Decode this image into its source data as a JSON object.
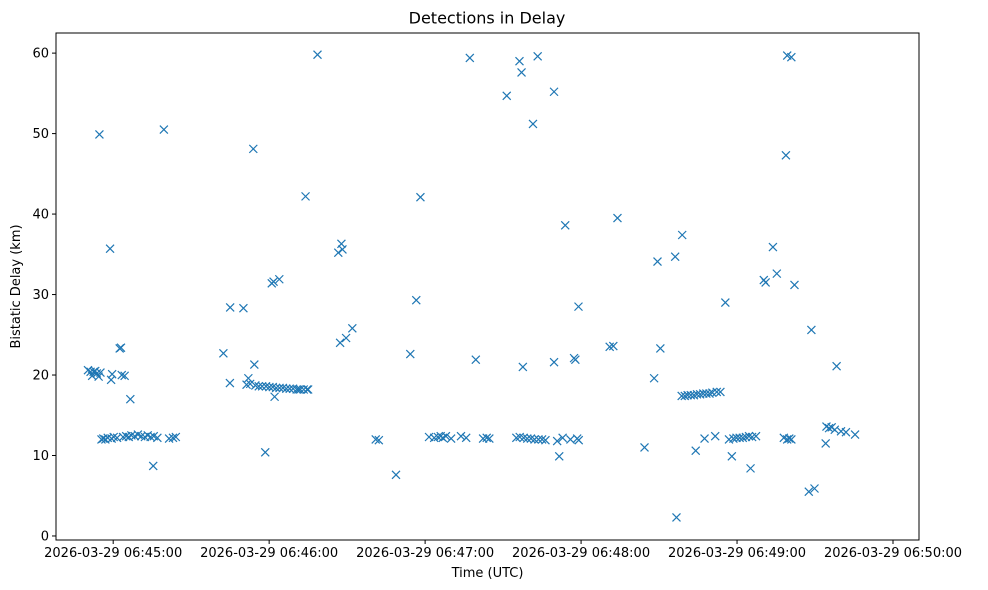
{
  "chart_data": {
    "type": "scatter",
    "title": "Detections in Delay",
    "xlabel": "Time (UTC)",
    "ylabel": "Bistatic Delay (km)",
    "marker": "x",
    "color": "#1f77b4",
    "x_unit": "seconds after 2026-03-29 06:45:00 UTC",
    "xlim": [
      -22.0,
      310.0
    ],
    "ylim": [
      -0.5,
      62.5
    ],
    "x_ticks": [
      {
        "value": 0,
        "label": "2026-03-29 06:45:00"
      },
      {
        "value": 60,
        "label": "2026-03-29 06:46:00"
      },
      {
        "value": 120,
        "label": "2026-03-29 06:47:00"
      },
      {
        "value": 180,
        "label": "2026-03-29 06:48:00"
      },
      {
        "value": 240,
        "label": "2026-03-29 06:49:00"
      },
      {
        "value": 300,
        "label": "2026-03-29 06:50:00"
      }
    ],
    "y_ticks": [
      {
        "value": 0,
        "label": "0"
      },
      {
        "value": 10,
        "label": "10"
      },
      {
        "value": 20,
        "label": "20"
      },
      {
        "value": 30,
        "label": "30"
      },
      {
        "value": 40,
        "label": "40"
      },
      {
        "value": 50,
        "label": "50"
      },
      {
        "value": 60,
        "label": "60"
      }
    ],
    "points": [
      [
        -9.7,
        20.6
      ],
      [
        -8.7,
        20.4
      ],
      [
        -8.1,
        19.9
      ],
      [
        -7.5,
        20.4
      ],
      [
        -6.9,
        20.5
      ],
      [
        -6.3,
        20.2
      ],
      [
        -5.6,
        19.8
      ],
      [
        -4.9,
        20.3
      ],
      [
        -5.3,
        49.9
      ],
      [
        -4.5,
        12.0
      ],
      [
        -3.8,
        12.1
      ],
      [
        -3.0,
        12.0
      ],
      [
        -2.1,
        12.2
      ],
      [
        -1.2,
        35.7
      ],
      [
        -0.6,
        12.1
      ],
      [
        0.2,
        12.3
      ],
      [
        -0.8,
        19.4
      ],
      [
        -0.4,
        20.1
      ],
      [
        1.5,
        12.2
      ],
      [
        2.5,
        23.3
      ],
      [
        3.0,
        23.4
      ],
      [
        3.3,
        20.0
      ],
      [
        3.8,
        12.3
      ],
      [
        4.4,
        19.9
      ],
      [
        5.0,
        12.4
      ],
      [
        6.0,
        12.3
      ],
      [
        6.6,
        17.0
      ],
      [
        7.0,
        12.5
      ],
      [
        8.3,
        12.4
      ],
      [
        9.5,
        12.6
      ],
      [
        10.8,
        12.4
      ],
      [
        12.2,
        12.3
      ],
      [
        13.3,
        12.5
      ],
      [
        14.4,
        12.3
      ],
      [
        15.4,
        8.7
      ],
      [
        15.6,
        12.4
      ],
      [
        17.0,
        12.2
      ],
      [
        21.5,
        12.1
      ],
      [
        23.0,
        12.2
      ],
      [
        19.5,
        50.5
      ],
      [
        24.1,
        12.3
      ],
      [
        42.4,
        22.7
      ],
      [
        45.0,
        28.4
      ],
      [
        44.9,
        19.0
      ],
      [
        50.1,
        28.3
      ],
      [
        51.3,
        18.8
      ],
      [
        52.0,
        19.6
      ],
      [
        52.7,
        18.9
      ],
      [
        54.3,
        21.3
      ],
      [
        53.9,
        48.1
      ],
      [
        54.7,
        18.7
      ],
      [
        56.0,
        18.6
      ],
      [
        57.3,
        18.6
      ],
      [
        58.5,
        10.4
      ],
      [
        58.8,
        18.6
      ],
      [
        60.1,
        18.5
      ],
      [
        61.4,
        18.5
      ],
      [
        61.0,
        31.4
      ],
      [
        61.7,
        31.6
      ],
      [
        62.1,
        17.3
      ],
      [
        62.7,
        18.4
      ],
      [
        63.9,
        31.9
      ],
      [
        64.0,
        18.4
      ],
      [
        65.3,
        18.4
      ],
      [
        66.6,
        18.3
      ],
      [
        67.9,
        18.3
      ],
      [
        69.2,
        18.3
      ],
      [
        70.6,
        18.2
      ],
      [
        71.3,
        18.2
      ],
      [
        72.0,
        18.2
      ],
      [
        73.3,
        18.2
      ],
      [
        74.0,
        42.2
      ],
      [
        74.6,
        18.2
      ],
      [
        75.0,
        18.2
      ],
      [
        78.6,
        59.8
      ],
      [
        86.6,
        35.2
      ],
      [
        87.3,
        24.0
      ],
      [
        87.8,
        36.3
      ],
      [
        88.2,
        35.6
      ],
      [
        89.6,
        24.6
      ],
      [
        92.0,
        25.8
      ],
      [
        101.0,
        12.0
      ],
      [
        102.2,
        11.9
      ],
      [
        108.8,
        7.6
      ],
      [
        114.3,
        22.6
      ],
      [
        116.6,
        29.3
      ],
      [
        118.2,
        42.1
      ],
      [
        121.5,
        12.3
      ],
      [
        123.5,
        12.2
      ],
      [
        124.9,
        12.3
      ],
      [
        126.0,
        12.4
      ],
      [
        126.8,
        12.2
      ],
      [
        128.0,
        12.4
      ],
      [
        130.0,
        12.1
      ],
      [
        133.8,
        12.4
      ],
      [
        135.8,
        12.2
      ],
      [
        137.2,
        59.4
      ],
      [
        139.5,
        21.9
      ],
      [
        142.3,
        12.1
      ],
      [
        143.7,
        12.2
      ],
      [
        144.7,
        12.1
      ],
      [
        151.4,
        54.7
      ],
      [
        155.1,
        12.2
      ],
      [
        156.3,
        59.0
      ],
      [
        156.4,
        12.3
      ],
      [
        157.1,
        57.6
      ],
      [
        157.6,
        21.0
      ],
      [
        157.9,
        12.2
      ],
      [
        159.3,
        12.1
      ],
      [
        160.7,
        12.1
      ],
      [
        161.5,
        51.2
      ],
      [
        162.1,
        12.0
      ],
      [
        163.3,
        59.6
      ],
      [
        163.6,
        12.0
      ],
      [
        165.0,
        12.0
      ],
      [
        166.3,
        11.9
      ],
      [
        169.6,
        21.6
      ],
      [
        169.6,
        55.2
      ],
      [
        170.8,
        11.8
      ],
      [
        171.6,
        9.9
      ],
      [
        172.9,
        12.2
      ],
      [
        173.9,
        38.6
      ],
      [
        175.9,
        12.0
      ],
      [
        177.3,
        22.1
      ],
      [
        177.8,
        21.9
      ],
      [
        178.5,
        12.1
      ],
      [
        179.1,
        11.9
      ],
      [
        179.0,
        28.5
      ],
      [
        191.0,
        23.5
      ],
      [
        192.4,
        23.6
      ],
      [
        194.0,
        39.5
      ],
      [
        204.4,
        11.0
      ],
      [
        208.1,
        19.6
      ],
      [
        209.4,
        34.1
      ],
      [
        210.5,
        23.3
      ],
      [
        216.2,
        34.7
      ],
      [
        216.7,
        2.3
      ],
      [
        218.9,
        37.4
      ],
      [
        218.7,
        17.4
      ],
      [
        219.9,
        17.4
      ],
      [
        221.0,
        17.5
      ],
      [
        222.2,
        17.5
      ],
      [
        223.4,
        17.5
      ],
      [
        224.1,
        10.6
      ],
      [
        224.6,
        17.6
      ],
      [
        225.8,
        17.6
      ],
      [
        227.0,
        17.7
      ],
      [
        227.5,
        12.1
      ],
      [
        228.2,
        17.7
      ],
      [
        229.4,
        17.7
      ],
      [
        230.5,
        17.8
      ],
      [
        231.6,
        12.4
      ],
      [
        232.2,
        17.9
      ],
      [
        233.6,
        17.9
      ],
      [
        235.5,
        29.0
      ],
      [
        236.9,
        12.0
      ],
      [
        238.0,
        9.9
      ],
      [
        238.6,
        12.1
      ],
      [
        239.8,
        12.2
      ],
      [
        241.0,
        12.2
      ],
      [
        242.2,
        12.2
      ],
      [
        243.4,
        12.3
      ],
      [
        244.6,
        12.4
      ],
      [
        245.2,
        8.4
      ],
      [
        245.8,
        12.3
      ],
      [
        247.3,
        12.4
      ],
      [
        250.3,
        31.8
      ],
      [
        251.0,
        31.5
      ],
      [
        253.8,
        35.9
      ],
      [
        255.3,
        32.6
      ],
      [
        258.0,
        12.2
      ],
      [
        258.8,
        47.3
      ],
      [
        259.3,
        12.0
      ],
      [
        259.3,
        59.7
      ],
      [
        260.1,
        12.1
      ],
      [
        260.9,
        59.5
      ],
      [
        260.9,
        12.0
      ],
      [
        262.1,
        31.2
      ],
      [
        267.6,
        5.5
      ],
      [
        269.8,
        5.9
      ],
      [
        268.6,
        25.6
      ],
      [
        274.1,
        11.5
      ],
      [
        274.4,
        13.6
      ],
      [
        275.4,
        13.4
      ],
      [
        276.4,
        13.5
      ],
      [
        277.6,
        13.2
      ],
      [
        278.3,
        21.1
      ],
      [
        280.0,
        13.0
      ],
      [
        281.9,
        12.9
      ],
      [
        285.4,
        12.6
      ]
    ]
  }
}
